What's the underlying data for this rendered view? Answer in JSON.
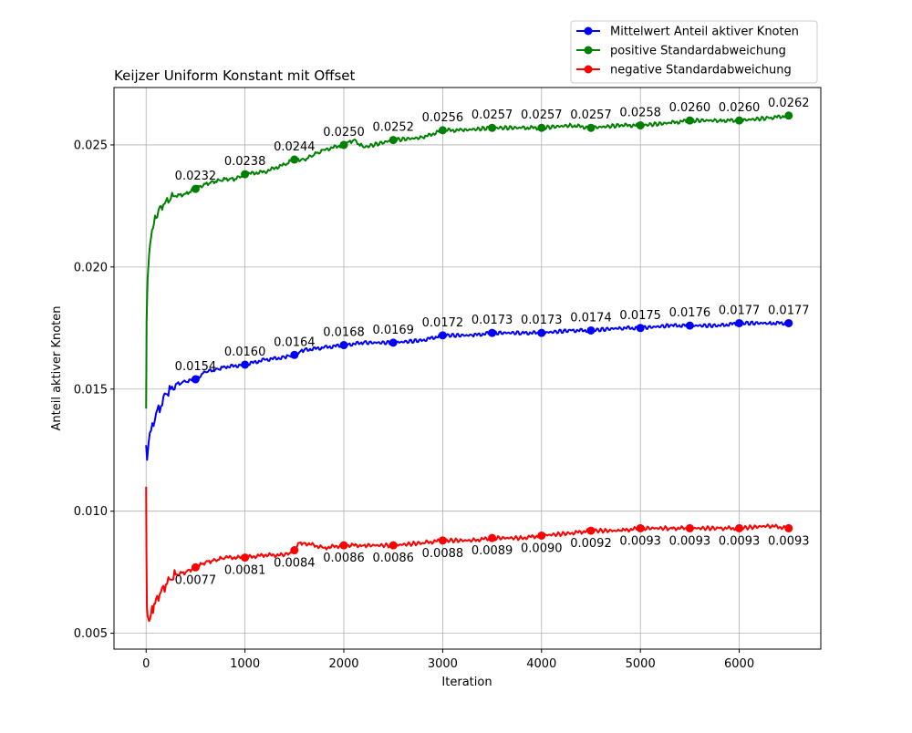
{
  "chart_data": {
    "type": "line",
    "title": "Keijzer Uniform Konstant mit Offset",
    "xlabel": "Iteration",
    "ylabel": "Anteil aktiver Knoten",
    "xlim": [
      -325,
      6825
    ],
    "ylim": [
      0.00435,
      0.02735
    ],
    "xticks": [
      0,
      1000,
      2000,
      3000,
      4000,
      5000,
      6000
    ],
    "xtick_labels": [
      "0",
      "1000",
      "2000",
      "3000",
      "4000",
      "5000",
      "6000"
    ],
    "yticks": [
      0.005,
      0.01,
      0.015,
      0.02,
      0.025
    ],
    "ytick_labels": [
      "0.005",
      "0.010",
      "0.015",
      "0.020",
      "0.025"
    ],
    "grid": true,
    "legend_position": "top-right, above plot",
    "marker_x": [
      500,
      1000,
      1500,
      2000,
      2500,
      3000,
      3500,
      4000,
      4500,
      5000,
      5500,
      6000,
      6500
    ],
    "series": [
      {
        "name": "Mittelwert Anteil aktiver Knoten",
        "color": "#0000ff",
        "label_position": "above",
        "values": [
          0.0154,
          0.016,
          0.0164,
          0.0168,
          0.0169,
          0.0172,
          0.0173,
          0.0173,
          0.0174,
          0.0175,
          0.0176,
          0.0177,
          0.0177
        ],
        "labels": [
          "0.0154",
          "0.0160",
          "0.0164",
          "0.0168",
          "0.0169",
          "0.0172",
          "0.0173",
          "0.0173",
          "0.0174",
          "0.0175",
          "0.0176",
          "0.0177",
          "0.0177"
        ],
        "curve_x": [
          0,
          10,
          25,
          50,
          100,
          150,
          200,
          250,
          300,
          400,
          500,
          600,
          700,
          800,
          1000,
          1200,
          1400,
          1500,
          1600,
          1800,
          2000,
          2200,
          2500,
          2800,
          3000,
          3300,
          3500,
          3800,
          4000,
          4300,
          4500,
          4800,
          5000,
          5300,
          5500,
          5800,
          6000,
          6300,
          6500
        ],
        "curve_y": [
          0.0127,
          0.0121,
          0.0128,
          0.0133,
          0.014,
          0.0143,
          0.0148,
          0.015,
          0.0152,
          0.0153,
          0.0154,
          0.0157,
          0.0158,
          0.0159,
          0.016,
          0.0162,
          0.0163,
          0.0164,
          0.0166,
          0.0167,
          0.0168,
          0.0169,
          0.0169,
          0.017,
          0.0172,
          0.0172,
          0.0173,
          0.0173,
          0.0173,
          0.0174,
          0.0174,
          0.0175,
          0.0175,
          0.0176,
          0.0176,
          0.0176,
          0.0177,
          0.0177,
          0.0177
        ]
      },
      {
        "name": "positive Standardabweichung",
        "color": "#008000",
        "label_position": "above",
        "values": [
          0.0232,
          0.0238,
          0.0244,
          0.025,
          0.0252,
          0.0256,
          0.0257,
          0.0257,
          0.0257,
          0.0258,
          0.026,
          0.026,
          0.0262
        ],
        "labels": [
          "0.0232",
          "0.0238",
          "0.0244",
          "0.0250",
          "0.0252",
          "0.0256",
          "0.0257",
          "0.0257",
          "0.0257",
          "0.0258",
          "0.0260",
          "0.0260",
          "0.0262"
        ],
        "curve_x": [
          0,
          5,
          15,
          30,
          50,
          80,
          100,
          150,
          200,
          250,
          300,
          400,
          500,
          600,
          700,
          800,
          900,
          1000,
          1200,
          1400,
          1500,
          1600,
          1700,
          1800,
          2000,
          2100,
          2200,
          2500,
          2800,
          3000,
          3200,
          3500,
          3800,
          4000,
          4300,
          4500,
          4800,
          5000,
          5300,
          5500,
          5800,
          6000,
          6300,
          6500
        ],
        "curve_y": [
          0.0142,
          0.0178,
          0.0195,
          0.0205,
          0.0212,
          0.0218,
          0.022,
          0.0225,
          0.0227,
          0.0228,
          0.0229,
          0.023,
          0.0232,
          0.0234,
          0.0235,
          0.0236,
          0.0236,
          0.0238,
          0.0239,
          0.0242,
          0.0244,
          0.0244,
          0.0246,
          0.0248,
          0.025,
          0.0252,
          0.0249,
          0.0252,
          0.0253,
          0.0256,
          0.0256,
          0.0257,
          0.0257,
          0.0257,
          0.0258,
          0.0257,
          0.0258,
          0.0258,
          0.0259,
          0.026,
          0.026,
          0.026,
          0.0261,
          0.0262
        ]
      },
      {
        "name": "negative Standardabweichung",
        "color": "#ff0000",
        "label_position": "below",
        "values": [
          0.0077,
          0.0081,
          0.0084,
          0.0086,
          0.0086,
          0.0088,
          0.0089,
          0.009,
          0.0092,
          0.0093,
          0.0093,
          0.0093,
          0.0093
        ],
        "labels": [
          "0.0077",
          "0.0081",
          "0.0084",
          "0.0086",
          "0.0086",
          "0.0088",
          "0.0089",
          "0.0090",
          "0.0092",
          "0.0093",
          "0.0093",
          "0.0093",
          "0.0093"
        ],
        "curve_x": [
          0,
          3,
          8,
          15,
          30,
          50,
          80,
          100,
          150,
          200,
          250,
          300,
          400,
          500,
          600,
          700,
          800,
          1000,
          1200,
          1400,
          1500,
          1550,
          1600,
          1800,
          2000,
          2200,
          2500,
          2800,
          3000,
          3300,
          3500,
          3800,
          4000,
          4300,
          4500,
          4800,
          5000,
          5300,
          5500,
          5800,
          6000,
          6300,
          6500
        ],
        "curve_y": [
          0.011,
          0.0085,
          0.0061,
          0.0057,
          0.0055,
          0.0058,
          0.0062,
          0.0064,
          0.0067,
          0.007,
          0.0072,
          0.0074,
          0.0075,
          0.0077,
          0.0079,
          0.008,
          0.0081,
          0.0081,
          0.0082,
          0.0082,
          0.0084,
          0.0087,
          0.0087,
          0.0085,
          0.0086,
          0.0086,
          0.0086,
          0.0087,
          0.0088,
          0.0088,
          0.0089,
          0.0089,
          0.009,
          0.0091,
          0.0092,
          0.0092,
          0.0093,
          0.0093,
          0.0093,
          0.0093,
          0.0093,
          0.0094,
          0.0093
        ]
      }
    ]
  }
}
